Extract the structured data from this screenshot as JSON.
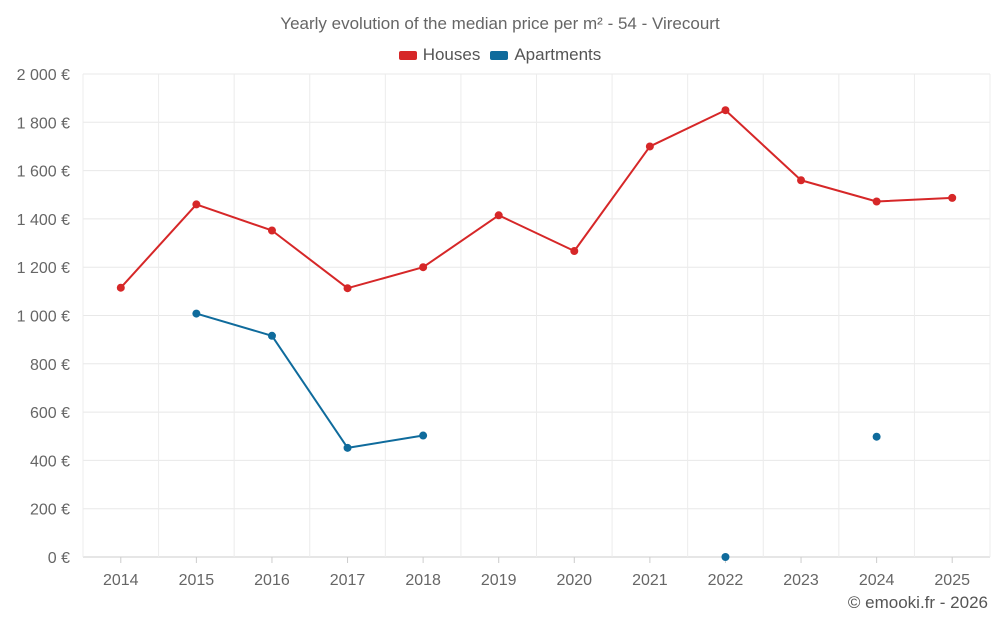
{
  "chart_data": {
    "type": "line",
    "title": "Yearly evolution of the median price per m² - 54 - Virecourt",
    "xlabel": "",
    "ylabel": "",
    "categories": [
      "2014",
      "2015",
      "2016",
      "2017",
      "2018",
      "2019",
      "2020",
      "2021",
      "2022",
      "2023",
      "2024",
      "2025"
    ],
    "ylim": [
      0,
      2000
    ],
    "yticks": [
      0,
      200,
      400,
      600,
      800,
      1000,
      1200,
      1400,
      1600,
      1800,
      2000
    ],
    "ytick_labels": [
      "0 €",
      "200 €",
      "400 €",
      "600 €",
      "800 €",
      "1 000 €",
      "1 200 €",
      "1 400 €",
      "1 600 €",
      "1 800 €",
      "2 000 €"
    ],
    "grid": true,
    "legend_position": "top-center",
    "series": [
      {
        "name": "Houses",
        "color": "#d62728",
        "values": [
          1115,
          1460,
          1352,
          1113,
          1200,
          1415,
          1267,
          1700,
          1850,
          1560,
          1472,
          1487
        ]
      },
      {
        "name": "Apartments",
        "color": "#0f6b9c",
        "values": [
          null,
          1008,
          916,
          452,
          503,
          null,
          null,
          null,
          0,
          null,
          498,
          null
        ]
      }
    ]
  },
  "credit": "© emooki.fr - 2026"
}
